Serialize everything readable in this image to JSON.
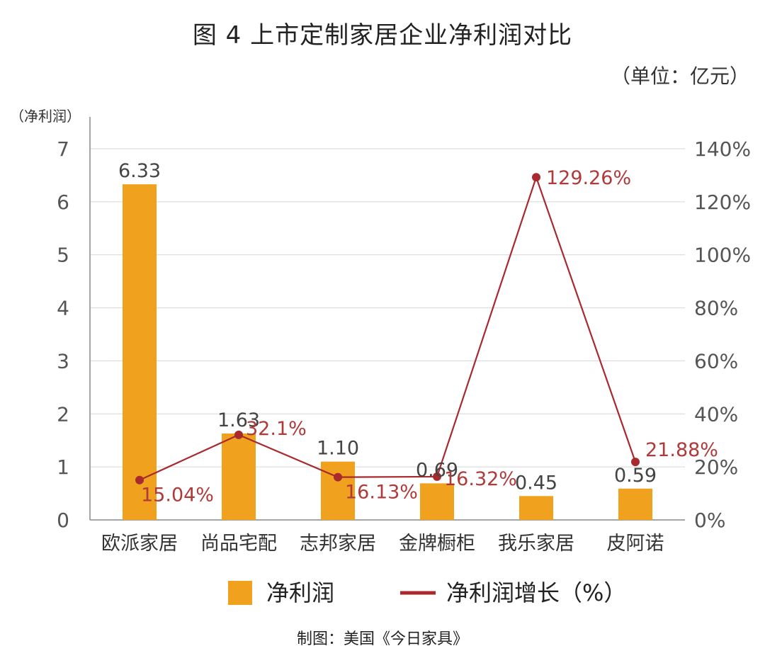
{
  "title": "图 4   上市定制家居企业净利润对比",
  "unit": "（单位：亿元）",
  "credit": "制图：美国《今日家具》",
  "colors": {
    "bar": "#f0a21e",
    "line": "#a92a2e",
    "grid": "#d6d6d6"
  },
  "chart_data": {
    "type": "bar",
    "categories": [
      "欧派家居",
      "尚品宅配",
      "志邦家居",
      "金牌橱柜",
      "我乐家居",
      "皮阿诺"
    ],
    "y_axis_label": "（净利润）",
    "left_axis": {
      "ylim": [
        0,
        7
      ],
      "ticks": [
        "0",
        "1",
        "2",
        "3",
        "4",
        "5",
        "6",
        "7"
      ]
    },
    "right_axis": {
      "ylim": [
        0,
        140
      ],
      "ticks": [
        "0%",
        "20%",
        "40%",
        "60%",
        "80%",
        "100%",
        "120%",
        "140%"
      ]
    },
    "grid": true,
    "legend_position": "bottom",
    "series": [
      {
        "name": "净利润",
        "type": "bar",
        "axis": "left",
        "values": [
          6.33,
          1.63,
          1.1,
          0.69,
          0.45,
          0.59
        ],
        "labels": [
          "6.33",
          "1.63",
          "1.10",
          "0.69",
          "0.45",
          "0.59"
        ]
      },
      {
        "name": "净利润增长（%）",
        "type": "line",
        "axis": "right",
        "values": [
          15.04,
          32.1,
          16.13,
          16.32,
          129.26,
          21.88
        ],
        "labels": [
          "15.04%",
          "32.1%",
          "16.13%",
          "16.32%",
          "129.26%",
          "21.88%"
        ]
      }
    ]
  }
}
